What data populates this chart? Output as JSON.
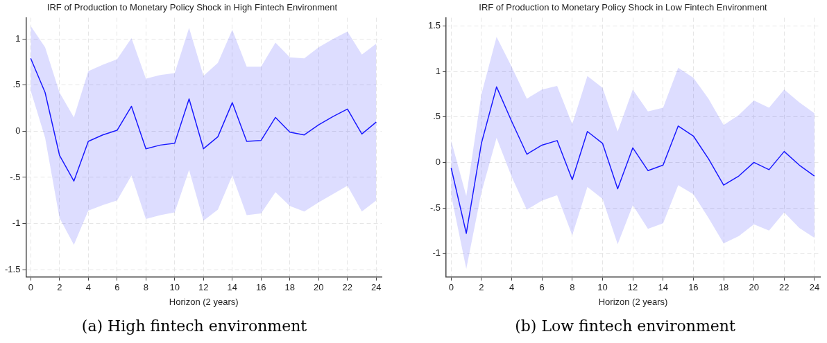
{
  "chart_data": [
    {
      "type": "line",
      "title": "IRF of Production to Monetary Policy Shock in High Fintech Environment",
      "xlabel": "Horizon (2 years)",
      "annotations": [
        "(a) High fintech environment"
      ],
      "x": [
        0,
        1,
        2,
        3,
        4,
        5,
        6,
        7,
        8,
        9,
        10,
        11,
        12,
        13,
        14,
        15,
        16,
        17,
        18,
        19,
        20,
        21,
        22,
        23,
        24
      ],
      "series": [
        {
          "color": "#1a1aff",
          "values": [
            0.79,
            0.42,
            -0.26,
            -0.54,
            -0.11,
            -0.04,
            0.01,
            0.27,
            -0.19,
            -0.15,
            -0.13,
            0.35,
            -0.19,
            -0.06,
            0.31,
            -0.11,
            -0.1,
            0.15,
            -0.01,
            -0.04,
            0.07,
            0.16,
            0.24,
            -0.03,
            0.1
          ],
          "lower": [
            0.44,
            -0.07,
            -0.94,
            -1.23,
            -0.86,
            -0.8,
            -0.75,
            -0.48,
            -0.95,
            -0.91,
            -0.88,
            -0.42,
            -0.97,
            -0.85,
            -0.48,
            -0.91,
            -0.89,
            -0.66,
            -0.81,
            -0.87,
            -0.77,
            -0.68,
            -0.59,
            -0.87,
            -0.75
          ],
          "upper": [
            1.14,
            0.91,
            0.42,
            0.15,
            0.65,
            0.72,
            0.78,
            1.01,
            0.57,
            0.61,
            0.63,
            1.12,
            0.6,
            0.74,
            1.1,
            0.7,
            0.7,
            0.96,
            0.8,
            0.79,
            0.91,
            1.0,
            1.08,
            0.83,
            0.95
          ]
        }
      ],
      "xlim": [
        -0.33,
        24.37
      ],
      "xticks": [
        0,
        2,
        4,
        6,
        8,
        10,
        12,
        14,
        16,
        18,
        20,
        22,
        24
      ],
      "ylim": [
        -1.58,
        1.23
      ],
      "yticks": [
        {
          "value": -1.5,
          "label": "-1.5"
        },
        {
          "value": -1,
          "label": "-1"
        },
        {
          "value": -0.5,
          "label": "-.5"
        },
        {
          "value": 0,
          "label": "0"
        },
        {
          "value": 0.5,
          "label": ".5"
        },
        {
          "value": 1,
          "label": "1"
        }
      ],
      "grid": true,
      "legend": false,
      "marker": "none",
      "line_style": "solid"
    },
    {
      "type": "line",
      "title": "IRF of Production to Monetary Policy Shock in Low Fintech Environment",
      "xlabel": "Horizon (2 years)",
      "annotations": [
        "(b) Low fintech environment"
      ],
      "x": [
        0,
        1,
        2,
        3,
        4,
        5,
        6,
        7,
        8,
        9,
        10,
        11,
        12,
        13,
        14,
        15,
        16,
        17,
        18,
        19,
        20,
        21,
        22,
        23,
        24
      ],
      "series": [
        {
          "color": "#1a1aff",
          "values": [
            -0.06,
            -0.78,
            0.21,
            0.83,
            0.45,
            0.09,
            0.19,
            0.24,
            -0.19,
            0.34,
            0.21,
            -0.29,
            0.16,
            -0.09,
            -0.03,
            0.4,
            0.29,
            0.04,
            -0.25,
            -0.15,
            0.0,
            -0.08,
            0.12,
            -0.03,
            -0.15
          ],
          "lower": [
            -0.36,
            -1.17,
            -0.33,
            0.27,
            -0.16,
            -0.52,
            -0.42,
            -0.36,
            -0.8,
            -0.27,
            -0.4,
            -0.9,
            -0.47,
            -0.73,
            -0.67,
            -0.25,
            -0.35,
            -0.61,
            -0.89,
            -0.81,
            -0.68,
            -0.75,
            -0.55,
            -0.72,
            -0.83
          ],
          "upper": [
            0.24,
            -0.37,
            0.75,
            1.38,
            1.05,
            0.7,
            0.8,
            0.84,
            0.42,
            0.95,
            0.82,
            0.34,
            0.8,
            0.56,
            0.6,
            1.04,
            0.93,
            0.7,
            0.41,
            0.52,
            0.68,
            0.6,
            0.8,
            0.66,
            0.54
          ]
        }
      ],
      "xlim": [
        -0.33,
        24.37
      ],
      "xticks": [
        0,
        2,
        4,
        6,
        8,
        10,
        12,
        14,
        16,
        18,
        20,
        22,
        24
      ],
      "ylim": [
        -1.26,
        1.59
      ],
      "yticks": [
        {
          "value": -1,
          "label": "-1"
        },
        {
          "value": -0.5,
          "label": "-.5"
        },
        {
          "value": 0,
          "label": "0"
        },
        {
          "value": 0.5,
          "label": ".5"
        },
        {
          "value": 1,
          "label": "1"
        },
        {
          "value": 1.5,
          "label": "1.5"
        }
      ],
      "grid": true,
      "legend": false,
      "marker": "none",
      "line_style": "solid"
    }
  ]
}
